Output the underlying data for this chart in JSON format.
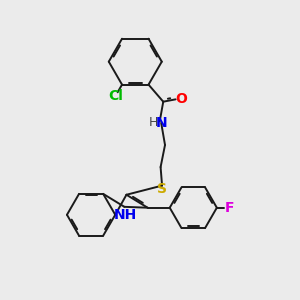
{
  "background_color": "#ebebeb",
  "bond_color": "#1a1a1a",
  "atoms": {
    "Cl": {
      "color": "#00bb00",
      "fontsize": 10
    },
    "O": {
      "color": "#ff0000",
      "fontsize": 10
    },
    "N": {
      "color": "#0000ee",
      "fontsize": 10
    },
    "S": {
      "color": "#ccaa00",
      "fontsize": 10
    },
    "F": {
      "color": "#dd00dd",
      "fontsize": 10
    },
    "H": {
      "color": "#444444",
      "fontsize": 9
    }
  },
  "line_width": 1.4,
  "figsize": [
    3.0,
    3.0
  ],
  "dpi": 100
}
